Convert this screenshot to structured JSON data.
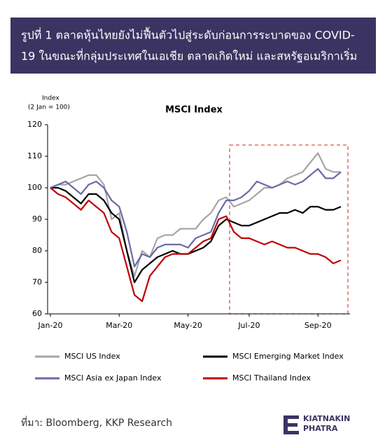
{
  "chart_data": {
    "type": "line",
    "heading": [
      "รูปที่ 1 ตลาดหุ้นไทยยังไม่ฟื้นตัวไปสู่ระดับก่อนการระบาดของ COVID-",
      "19 ในขณะที่กลุ่มประเทศในเอเชีย ตลาดเกิดใหม่ และสหรัฐอเมริกาเริ่ม"
    ],
    "title": "MSCI Index",
    "y_label": [
      "Index",
      "(2 Jan = 100)"
    ],
    "categories": [
      "Jan-20",
      null,
      null,
      null,
      null,
      null,
      null,
      null,
      null,
      "Mar-20",
      null,
      null,
      null,
      null,
      null,
      null,
      null,
      null,
      "May-20",
      null,
      null,
      null,
      null,
      null,
      null,
      null,
      "Jul-20",
      null,
      null,
      null,
      null,
      null,
      null,
      null,
      null,
      "Sep-20",
      null,
      null,
      null
    ],
    "ylim": [
      60,
      120
    ],
    "yticks": [
      60,
      70,
      80,
      90,
      100,
      110,
      120
    ],
    "grid": false,
    "series": [
      {
        "name": "MSCI US Index",
        "color": "#a6a6a6",
        "values": [
          100,
          101,
          101,
          102,
          103,
          104,
          104,
          101,
          90,
          92,
          80,
          72,
          80,
          78,
          84,
          85,
          85,
          87,
          87,
          87,
          90,
          92,
          96,
          97,
          94,
          95,
          96,
          98,
          100,
          100,
          101,
          103,
          104,
          105,
          108,
          111,
          106,
          105,
          105
        ]
      },
      {
        "name": "MSCI Emerging Market Index",
        "color": "#000000",
        "values": [
          100,
          100,
          99,
          97,
          95,
          98,
          98,
          96,
          92,
          90,
          80,
          70,
          74,
          76,
          78,
          79,
          80,
          79,
          79,
          80,
          81,
          83,
          88,
          90,
          89,
          88,
          88,
          89,
          90,
          91,
          92,
          92,
          93,
          92,
          94,
          94,
          93,
          93,
          94
        ]
      },
      {
        "name": "MSCI Asia ex Japan Index",
        "color": "#6b6aa8",
        "values": [
          100,
          101,
          102,
          100,
          98,
          101,
          102,
          100,
          96,
          94,
          86,
          75,
          79,
          78,
          81,
          82,
          82,
          82,
          81,
          84,
          85,
          86,
          92,
          96,
          96,
          97,
          99,
          102,
          101,
          100,
          101,
          102,
          101,
          102,
          104,
          106,
          103,
          103,
          105
        ]
      },
      {
        "name": "MSCI Thailand Index",
        "color": "#c00000",
        "values": [
          100,
          98,
          97,
          95,
          93,
          96,
          94,
          92,
          86,
          84,
          75,
          66,
          64,
          72,
          75,
          78,
          79,
          79,
          79,
          81,
          83,
          84,
          90,
          91,
          86,
          84,
          84,
          83,
          82,
          83,
          82,
          81,
          81,
          80,
          79,
          79,
          78,
          76,
          77
        ]
      }
    ],
    "source": "ที่มา: Bloomberg, KKP Research",
    "logo": [
      "KIATNAKIN",
      "PHATRA"
    ]
  }
}
